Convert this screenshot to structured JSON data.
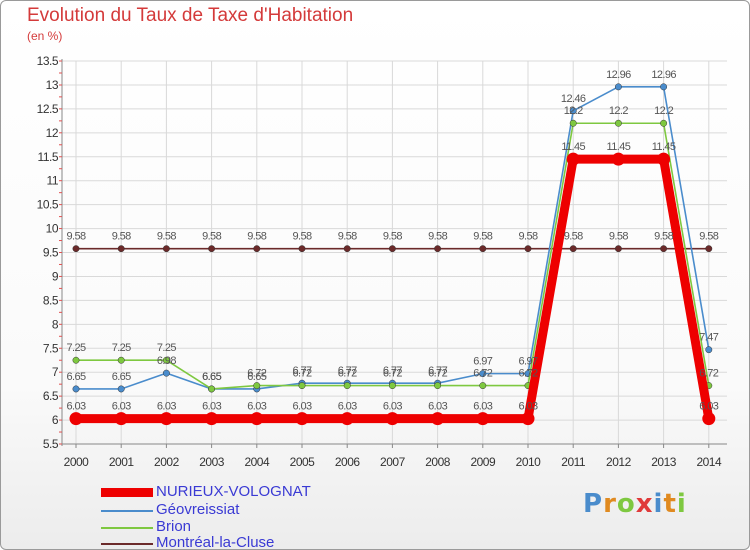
{
  "chart_data": {
    "type": "line",
    "title": "Evolution du Taux de Taxe d'Habitation",
    "subtitle": "(en %)",
    "xlabel": "",
    "ylabel": "(en %)",
    "ylim": [
      5.5,
      13.5
    ],
    "yticks": [
      "5.5",
      "6",
      "6.5",
      "7",
      "7.5",
      "8",
      "8.5",
      "9",
      "9.5",
      "10",
      "10.5",
      "11",
      "11.5",
      "12",
      "12.5",
      "13",
      "13.5"
    ],
    "grid": true,
    "categories": [
      "2000",
      "2001",
      "2002",
      "2003",
      "2004",
      "2005",
      "2006",
      "2007",
      "2008",
      "2009",
      "2010",
      "2011",
      "2012",
      "2013",
      "2014"
    ],
    "series": [
      {
        "name": "Montréal-la-Cluse",
        "color": "#6b2a2a",
        "values": [
          9.58,
          9.58,
          9.58,
          9.58,
          9.58,
          9.58,
          9.58,
          9.58,
          9.58,
          9.58,
          9.58,
          9.58,
          9.58,
          9.58,
          9.58
        ],
        "labels": [
          "9.58",
          "9.58",
          "9.58",
          "9.58",
          "9.58",
          "9.58",
          "9.58",
          "9.58",
          "9.58",
          "9.58",
          "9.58",
          "9.58",
          "9.58",
          "9.58",
          "9.58"
        ]
      },
      {
        "name": "Géovreissiat",
        "color": "#4a8ccc",
        "values": [
          6.65,
          6.65,
          6.98,
          6.65,
          6.65,
          6.77,
          6.77,
          6.77,
          6.77,
          6.97,
          6.97,
          12.46,
          12.96,
          12.96,
          7.47
        ],
        "labels": [
          "6.65",
          "6.65",
          "6.98",
          "6.65",
          "6.65",
          "6.77",
          "6.77",
          "6.77",
          "6.77",
          "6.97",
          "6.97",
          "12.46",
          "12.96",
          "12.96",
          "7.47"
        ]
      },
      {
        "name": "Brion",
        "color": "#7ec840",
        "values": [
          7.25,
          7.25,
          7.25,
          6.65,
          6.72,
          6.72,
          6.72,
          6.72,
          6.72,
          6.72,
          6.72,
          12.2,
          12.2,
          12.2,
          6.72
        ],
        "labels": [
          "7.25",
          "7.25",
          "7.25",
          "6.65",
          "6.72",
          "6.72",
          "6.72",
          "6.72",
          "6.72",
          "6.72",
          "6.72",
          "12.2",
          "12.2",
          "12.2",
          "6.72"
        ]
      },
      {
        "name": "NURIEUX-VOLOGNAT",
        "color": "#ee0000",
        "values": [
          6.03,
          6.03,
          6.03,
          6.03,
          6.03,
          6.03,
          6.03,
          6.03,
          6.03,
          6.03,
          6.03,
          11.45,
          11.45,
          11.45,
          6.03
        ],
        "labels": [
          "6.03",
          "6.03",
          "6.03",
          "6.03",
          "6.03",
          "6.03",
          "6.03",
          "6.03",
          "6.03",
          "6.03",
          "6.03",
          "11.45",
          "11.45",
          "11.45",
          "6.03"
        ]
      }
    ]
  },
  "legend": [
    {
      "name": "NURIEUX-VOLOGNAT",
      "color": "#ee0000"
    },
    {
      "name": "Géovreissiat",
      "color": "#4a8ccc"
    },
    {
      "name": "Brion",
      "color": "#7ec840"
    },
    {
      "name": "Montréal-la-Cluse",
      "color": "#6b2a2a"
    }
  ],
  "brand": {
    "letters": [
      "P",
      "r",
      "o",
      "x",
      "i",
      "t",
      "i"
    ],
    "colors": [
      "#4a8ccc",
      "#e08a20",
      "#7ec840",
      "#e03a3a",
      "#4a8ccc",
      "#e08a20",
      "#7ec840"
    ]
  }
}
